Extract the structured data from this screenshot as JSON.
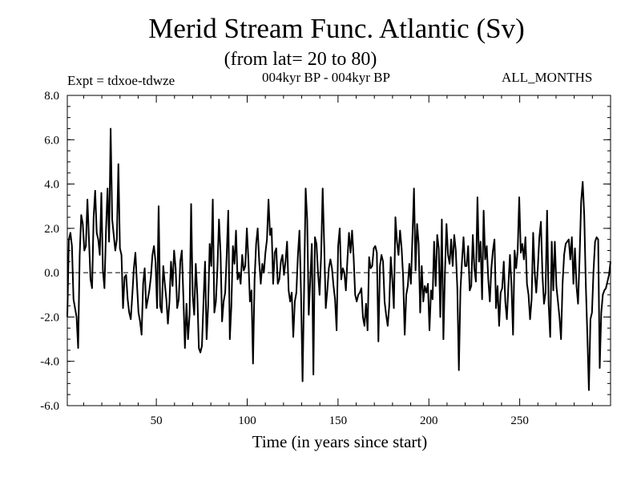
{
  "header": {
    "title": "Merid Stream Func. Atlantic (Sv)",
    "subtitle": "(from lat= 20 to 80)",
    "experiment": "Expt = tdxoe-tdwze",
    "period": "004kyr BP - 004kyr BP",
    "months": "ALL_MONTHS"
  },
  "chart_data": {
    "type": "line",
    "title": "Merid Stream Func. Atlantic (Sv)",
    "subtitle": "(from lat= 20 to 80)",
    "xlabel": "Time (in years since start)",
    "ylabel": "",
    "xlim": [
      1,
      300
    ],
    "ylim": [
      -6,
      8
    ],
    "x_ticks": [
      50,
      100,
      150,
      200,
      250
    ],
    "y_ticks": [
      -6,
      -4,
      -2,
      0,
      2,
      4,
      6,
      8
    ],
    "y_tick_labels": [
      "-6.0",
      "-4.0",
      "-2.0",
      "0.0",
      "2.0",
      "4.0",
      "6.0",
      "8.0"
    ],
    "reference_line": {
      "y": 0,
      "style": "dashed"
    },
    "grid": false,
    "colors": {
      "line": "#000000",
      "axis": "#000000",
      "background": "#ffffff"
    },
    "series": [
      {
        "values": [
          -2.0,
          1.5,
          1.8,
          1.2,
          -1.2,
          -1.6,
          -2.0,
          -3.4,
          0.8,
          2.6,
          2.2,
          1.0,
          1.2,
          3.3,
          1.5,
          -0.3,
          -0.7,
          2.5,
          3.7,
          1.8,
          1.5,
          0.8,
          3.6,
          0.1,
          -0.7,
          1.9,
          3.8,
          1.4,
          6.5,
          2.4,
          1.7,
          1.0,
          1.5,
          4.9,
          1.1,
          0.8,
          -1.6,
          -0.2,
          -0.1,
          -1.2,
          -1.8,
          -2.1,
          -1.0,
          0.2,
          0.9,
          -0.5,
          -1.8,
          -2.2,
          -2.8,
          -0.5,
          0.2,
          -1.6,
          -1.2,
          -0.8,
          -0.2,
          0.8,
          1.2,
          0.5,
          -1.6,
          3.0,
          -1.5,
          -1.8,
          0.3,
          -0.5,
          -1.2,
          -2.3,
          -1.3,
          0.5,
          -0.6,
          1.0,
          0.2,
          -1.6,
          -1.2,
          0.5,
          1.0,
          -1.1,
          -3.4,
          -1.4,
          -3.0,
          -1.9,
          3.1,
          -1.0,
          -1.9,
          0.4,
          -1.0,
          -3.4,
          -3.6,
          -3.3,
          -1.3,
          0.5,
          -3.0,
          -1.5,
          1.3,
          0.3,
          3.3,
          -1.8,
          -1.3,
          0.2,
          2.4,
          0.9,
          -2.2,
          -1.3,
          -0.9,
          0.8,
          2.8,
          -3.0,
          -1.5,
          1.2,
          0.4,
          1.9,
          -0.3,
          0.0,
          -0.5,
          0.8,
          0.1,
          0.3,
          2.0,
          0.6,
          -1.3,
          -0.8,
          -4.1,
          -0.3,
          1.3,
          2.0,
          0.5,
          -0.5,
          0.4,
          0.0,
          0.9,
          1.5,
          3.3,
          1.7,
          2.0,
          -0.5,
          0.9,
          1.1,
          -0.5,
          -0.3,
          0.5,
          0.8,
          -0.1,
          0.5,
          1.4,
          -0.8,
          -1.3,
          -0.9,
          -2.9,
          -1.3,
          -0.9,
          0.8,
          1.9,
          -0.9,
          -4.9,
          -0.7,
          3.8,
          2.4,
          -1.9,
          -0.3,
          1.3,
          -4.6,
          1.6,
          1.3,
          0.0,
          -1.0,
          0.8,
          3.8,
          1.2,
          -1.6,
          -0.8,
          0.2,
          0.6,
          0.2,
          -0.6,
          -1.2,
          -2.6,
          1.2,
          2.0,
          -0.3,
          0.2,
          0.0,
          -0.8,
          0.6,
          1.8,
          0.9,
          1.9,
          0.7,
          -1.0,
          -1.3,
          -1.0,
          -0.9,
          -0.7,
          -2.0,
          -2.4,
          -1.4,
          -2.6,
          0.7,
          0.2,
          0.3,
          1.1,
          1.2,
          0.9,
          -3.1,
          0.3,
          0.8,
          0.5,
          -1.3,
          -1.9,
          -2.4,
          -1.5,
          0.7,
          -0.3,
          -1.6,
          2.5,
          1.4,
          0.8,
          1.9,
          1.1,
          -0.2,
          -2.8,
          -1.0,
          -0.6,
          0.4,
          -0.5,
          1.6,
          3.8,
          0.1,
          2.2,
          1.3,
          -1.8,
          0.3,
          -1.3,
          -0.6,
          -0.9,
          -0.5,
          -2.6,
          -0.8,
          -1.2,
          1.4,
          -0.6,
          1.7,
          1.1,
          -2.0,
          2.4,
          -3.0,
          0.0,
          2.2,
          0.8,
          0.4,
          1.5,
          0.3,
          1.7,
          1.0,
          -0.7,
          -4.4,
          -0.8,
          0.5,
          1.6,
          0.3,
          0.3,
          1.2,
          -0.8,
          -0.6,
          1.7,
          0.2,
          -0.4,
          3.4,
          0.5,
          1.4,
          -1.2,
          2.8,
          0.6,
          1.2,
          -0.3,
          -1.3,
          0.2,
          1.0,
          1.5,
          -1.6,
          -0.6,
          -2.4,
          -0.9,
          -0.7,
          0.5,
          -1.3,
          -2.1,
          -0.6,
          0.8,
          -0.6,
          -2.8,
          1.0,
          0.2,
          1.0,
          3.4,
          0.9,
          1.3,
          0.6,
          1.6,
          -0.5,
          -1.0,
          -2.1,
          -1.2,
          1.8,
          0.0,
          -0.9,
          0.2,
          1.6,
          2.3,
          -0.1,
          -1.4,
          -0.9,
          2.8,
          -1.4,
          -2.9,
          1.4,
          -0.8,
          1.4,
          -0.6,
          -1.3,
          -2.0,
          -3.0,
          -0.5,
          0.8,
          1.3,
          1.4,
          1.5,
          0.6,
          1.6,
          -0.5,
          1.1,
          -0.6,
          -1.4,
          0.7,
          3.2,
          4.1,
          2.6,
          -0.5,
          -2.8,
          -5.3,
          -2.1,
          -1.8,
          0.1,
          1.4,
          1.6,
          1.5,
          -4.3,
          -1.8,
          -1.0,
          -0.8,
          -0.7,
          -0.4,
          -0.1,
          0.5
        ]
      }
    ]
  }
}
